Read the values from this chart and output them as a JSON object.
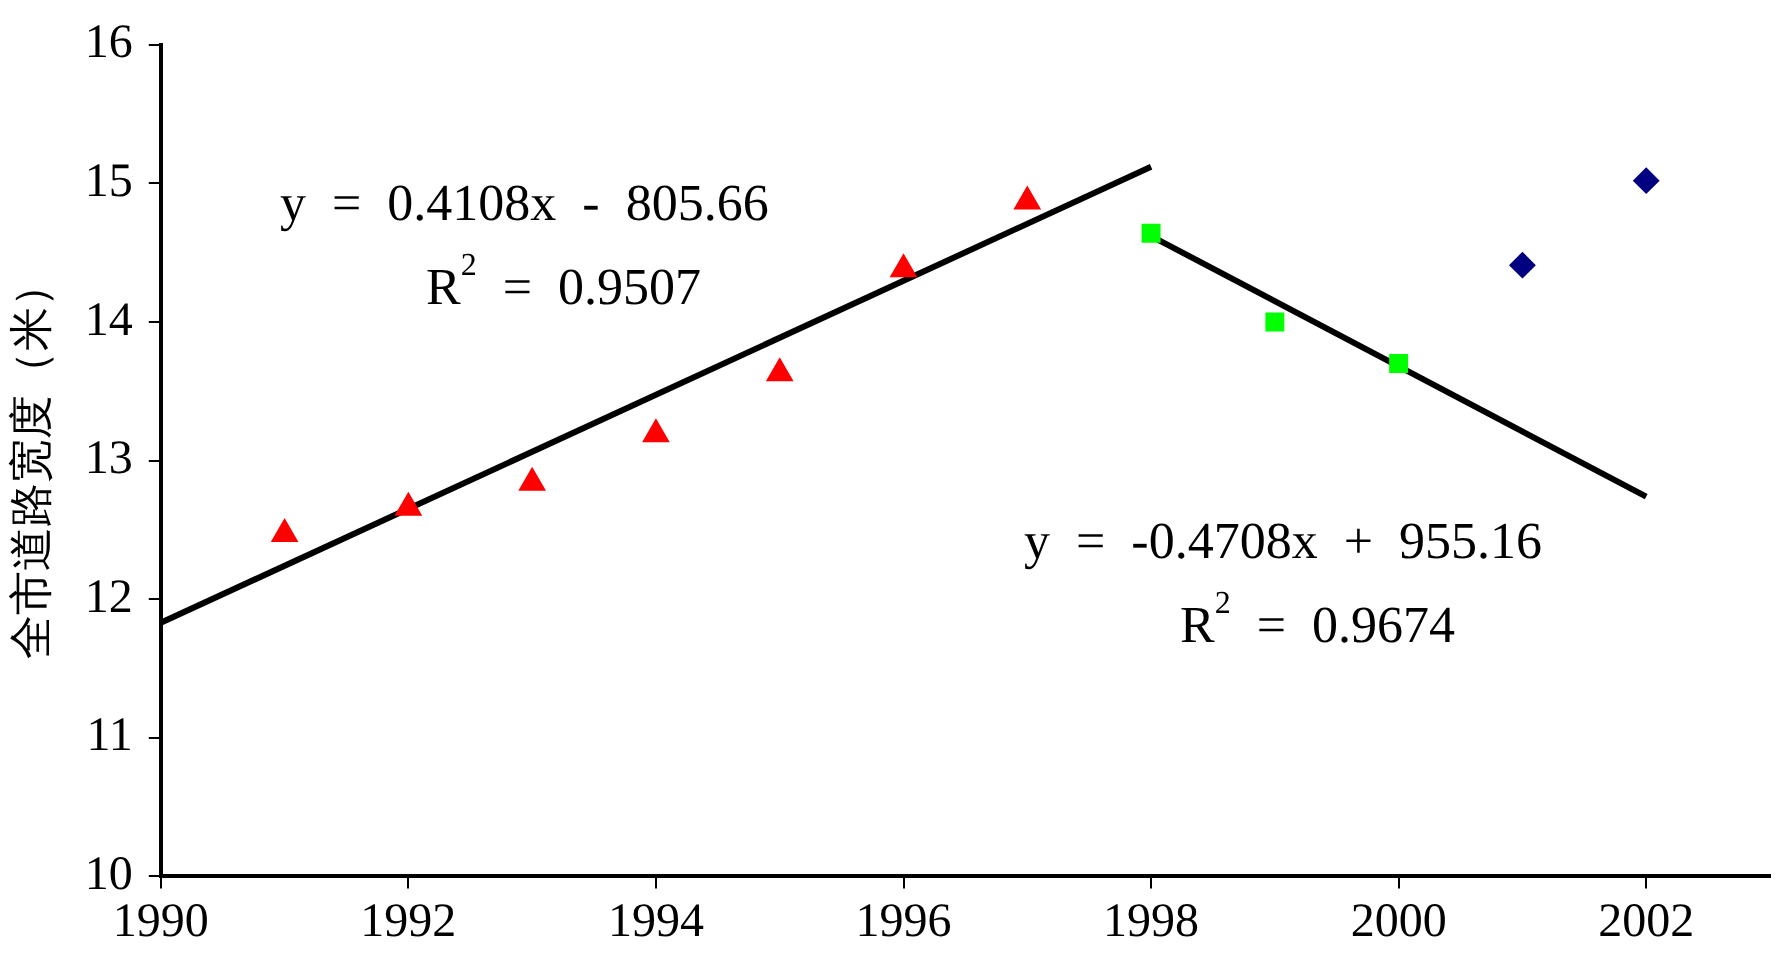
{
  "chart_data": {
    "type": "scatter",
    "ylabel": "全市道路宽度（米）",
    "xlim": [
      1990,
      2003
    ],
    "xticks": [
      1990,
      1992,
      1994,
      1996,
      1998,
      2000,
      2002
    ],
    "ylim": [
      10,
      16
    ],
    "yticks": [
      10,
      11,
      12,
      13,
      14,
      15,
      16
    ],
    "legend": false,
    "series": [
      {
        "marker": "triangle",
        "color": "#ff0000",
        "x": [
          1991,
          1992,
          1993,
          1994,
          1995,
          1996,
          1997
        ],
        "values": [
          12.47,
          12.66,
          12.84,
          13.19,
          13.63,
          14.38,
          14.87
        ]
      },
      {
        "marker": "square",
        "color": "#00ff00",
        "x": [
          1998,
          1999,
          2000
        ],
        "values": [
          14.64,
          14.0,
          13.7
        ]
      },
      {
        "marker": "diamond",
        "color": "#000080",
        "x": [
          2001,
          2002
        ],
        "values": [
          14.41,
          15.02
        ]
      },
      {
        "type": "line",
        "marker": "none",
        "color": "#000000",
        "x": [
          1990,
          1998
        ],
        "values": [
          11.83,
          15.12
        ]
      },
      {
        "type": "line",
        "marker": "none",
        "color": "#000000",
        "x": [
          1998,
          2002
        ],
        "values": [
          14.62,
          12.74
        ]
      }
    ],
    "annotations": [
      "y = 0.4108x - 805.66",
      "R$^{2}$ = 0.9507",
      "y = -0.4708x + 955.16",
      "R$^{2}$ = 0.9674"
    ]
  }
}
